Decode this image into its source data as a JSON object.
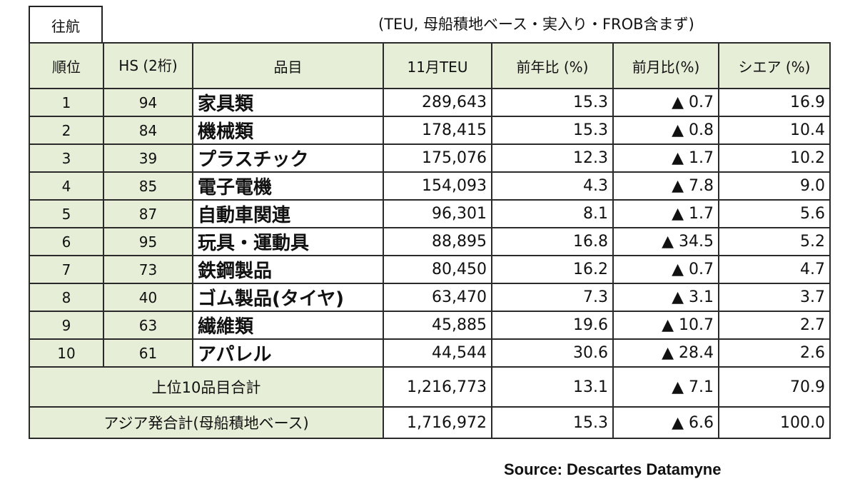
{
  "header": {
    "tag": "往航",
    "note": "(TEU, 母船積地ベース・実入り・FROB含まず)"
  },
  "table": {
    "columns": [
      "順位",
      "HS (2桁)",
      "品目",
      "11月TEU",
      "前年比 (%)",
      "前月比(%)",
      "シエア (%)"
    ],
    "rows": [
      {
        "rank": "1",
        "hs": "94",
        "item": "家具類",
        "teu": "289,643",
        "yoy": "15.3",
        "mom": "▲ 0.7",
        "share": "16.9"
      },
      {
        "rank": "2",
        "hs": "84",
        "item": "機械類",
        "teu": "178,415",
        "yoy": "15.3",
        "mom": "▲ 0.8",
        "share": "10.4"
      },
      {
        "rank": "3",
        "hs": "39",
        "item": "プラスチック",
        "teu": "175,076",
        "yoy": "12.3",
        "mom": "▲ 1.7",
        "share": "10.2"
      },
      {
        "rank": "4",
        "hs": "85",
        "item": "電子電機",
        "teu": "154,093",
        "yoy": "4.3",
        "mom": "▲ 7.8",
        "share": "9.0"
      },
      {
        "rank": "5",
        "hs": "87",
        "item": "自動車関連",
        "teu": "96,301",
        "yoy": "8.1",
        "mom": "▲ 1.7",
        "share": "5.6"
      },
      {
        "rank": "6",
        "hs": "95",
        "item": "玩具・運動具",
        "teu": "88,895",
        "yoy": "16.8",
        "mom": "▲ 34.5",
        "share": "5.2"
      },
      {
        "rank": "7",
        "hs": "73",
        "item": "鉄鋼製品",
        "teu": "80,450",
        "yoy": "16.2",
        "mom": "▲ 0.7",
        "share": "4.7"
      },
      {
        "rank": "8",
        "hs": "40",
        "item": "ゴム製品(タイヤ)",
        "teu": "63,470",
        "yoy": "7.3",
        "mom": "▲ 3.1",
        "share": "3.7"
      },
      {
        "rank": "9",
        "hs": "63",
        "item": "繊維類",
        "teu": "45,885",
        "yoy": "19.6",
        "mom": "▲ 10.7",
        "share": "2.7"
      },
      {
        "rank": "10",
        "hs": "61",
        "item": "アパレル",
        "teu": "44,544",
        "yoy": "30.6",
        "mom": "▲ 28.4",
        "share": "2.6"
      }
    ],
    "top10_total": {
      "label": "上位10品目合計",
      "teu": "1,216,773",
      "yoy": "13.1",
      "mom": "▲ 7.1",
      "share": "70.9"
    },
    "asia_total": {
      "label": "アジア発合計(母船積地ベース)",
      "teu": "1,716,972",
      "yoy": "15.3",
      "mom": "▲ 6.6",
      "share": "100.0"
    }
  },
  "footer": {
    "source": "Source: Descartes Datamyne"
  }
}
